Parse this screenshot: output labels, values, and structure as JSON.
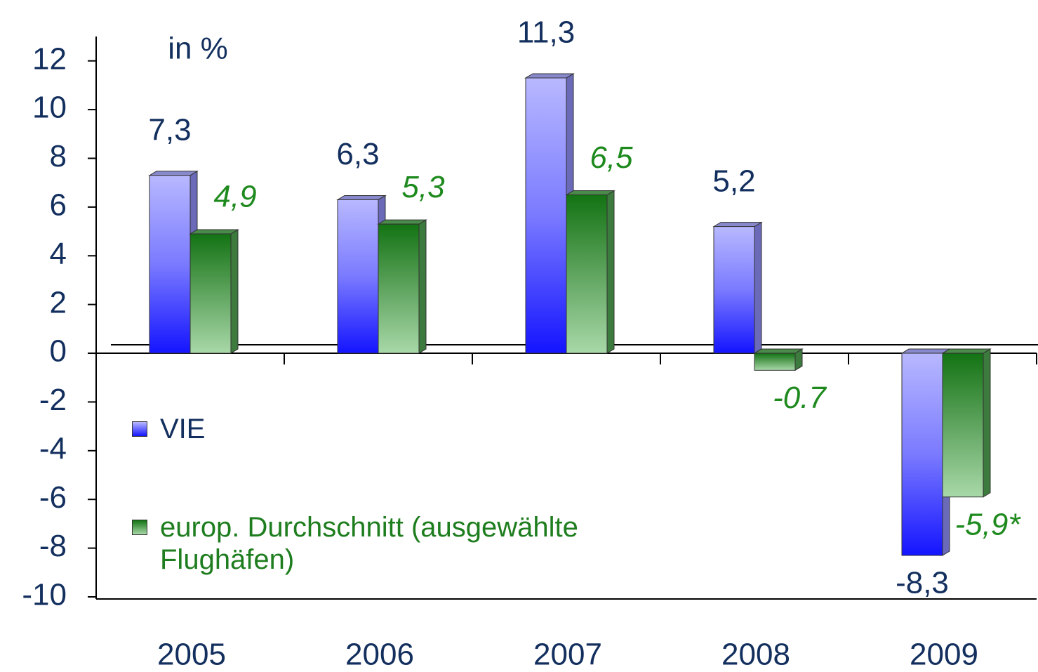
{
  "chart_data": {
    "type": "bar",
    "unit_label": "in %",
    "categories": [
      "2005",
      "2006",
      "2007",
      "2008",
      "2009"
    ],
    "series": [
      {
        "name": "VIE",
        "color": "#2a2aff",
        "values": [
          7.3,
          6.3,
          11.3,
          5.2,
          -8.3
        ],
        "value_labels": [
          "7,3",
          "6,3",
          "11,3",
          "5,2",
          "-8,3"
        ]
      },
      {
        "name": "europ. Durchschnitt (ausgewählte Flughäfen)",
        "color": "#1e7d1e",
        "values": [
          4.9,
          5.3,
          6.5,
          -0.7,
          -5.9
        ],
        "value_labels": [
          "4,9",
          "5,3",
          "6,5",
          "-0.7",
          "-5,9*"
        ]
      }
    ],
    "ylim": [
      -10,
      13
    ],
    "yticks": [
      -10,
      -8,
      -6,
      -4,
      -2,
      0,
      2,
      4,
      6,
      8,
      10,
      12
    ]
  }
}
